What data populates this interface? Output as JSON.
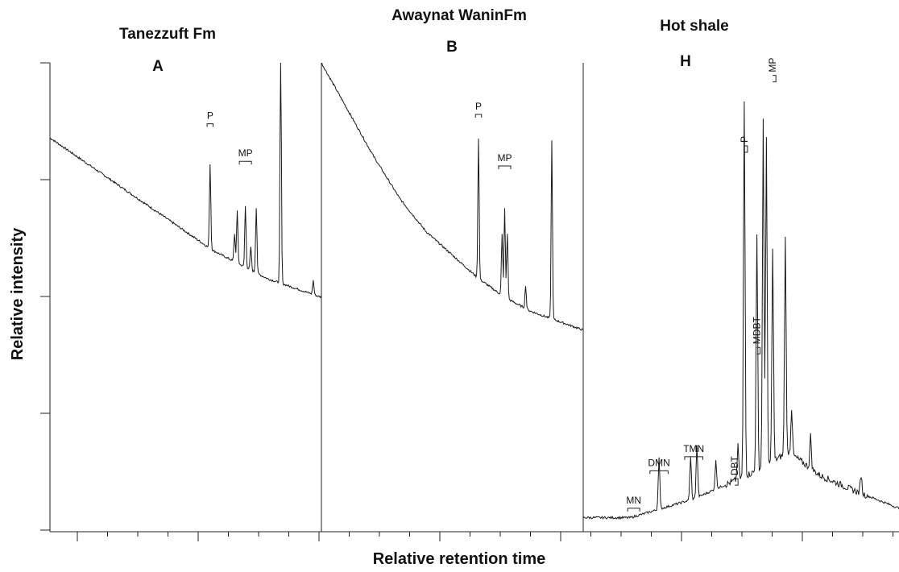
{
  "chart_data": {
    "type": "line",
    "xlabel": "Relative retention time",
    "ylabel": "Relative intensity",
    "grid": false,
    "panels": [
      {
        "title": "Tanezzuft Fm",
        "letter": "A",
        "xlim": [
          0,
          100
        ],
        "ylim": [
          0,
          100
        ],
        "baseline": [
          [
            0,
            84
          ],
          [
            20,
            76
          ],
          [
            40,
            68
          ],
          [
            60,
            60
          ],
          [
            80,
            54
          ],
          [
            100,
            50
          ]
        ],
        "peaks": [
          {
            "x": 59,
            "h": 18
          },
          {
            "x": 68,
            "h": 6
          },
          {
            "x": 69,
            "h": 11
          },
          {
            "x": 72,
            "h": 13
          },
          {
            "x": 74,
            "h": 5
          },
          {
            "x": 76,
            "h": 14
          },
          {
            "x": 85,
            "h": 50
          },
          {
            "x": 97,
            "h": 3
          }
        ],
        "labels": [
          {
            "text": "P",
            "x": 59,
            "y": 87
          },
          {
            "text": "MP",
            "x": 72,
            "y": 79
          }
        ]
      },
      {
        "title": "Awaynat WaninFm",
        "letter": "B",
        "xlim": [
          0,
          100
        ],
        "ylim": [
          0,
          100
        ],
        "baseline": [
          [
            0,
            100
          ],
          [
            10,
            90
          ],
          [
            20,
            80
          ],
          [
            30,
            71
          ],
          [
            40,
            64
          ],
          [
            50,
            59
          ],
          [
            60,
            54
          ],
          [
            70,
            50
          ],
          [
            80,
            47
          ],
          [
            90,
            45
          ],
          [
            100,
            43
          ]
        ],
        "peaks": [
          {
            "x": 60,
            "h": 30
          },
          {
            "x": 69,
            "h": 13
          },
          {
            "x": 70,
            "h": 19
          },
          {
            "x": 71,
            "h": 14
          },
          {
            "x": 78,
            "h": 5
          },
          {
            "x": 88,
            "h": 38
          }
        ],
        "labels": [
          {
            "text": "P",
            "x": 60,
            "y": 89
          },
          {
            "text": "MP",
            "x": 70,
            "y": 78
          }
        ]
      },
      {
        "title": "Hot shale",
        "letter": "H",
        "xlim": [
          0,
          100
        ],
        "ylim": [
          0,
          100
        ],
        "baseline": [
          [
            0,
            3
          ],
          [
            15,
            3
          ],
          [
            25,
            5
          ],
          [
            35,
            7
          ],
          [
            45,
            10
          ],
          [
            55,
            13
          ],
          [
            65,
            17
          ],
          [
            75,
            12
          ],
          [
            85,
            9
          ],
          [
            100,
            5
          ]
        ],
        "peaks": [
          {
            "x": 24,
            "h": 11
          },
          {
            "x": 34,
            "h": 9
          },
          {
            "x": 36,
            "h": 11
          },
          {
            "x": 42,
            "h": 6
          },
          {
            "x": 49,
            "h": 7
          },
          {
            "x": 51,
            "h": 80
          },
          {
            "x": 55,
            "h": 50
          },
          {
            "x": 57,
            "h": 74
          },
          {
            "x": 58,
            "h": 70
          },
          {
            "x": 60,
            "h": 45
          },
          {
            "x": 64,
            "h": 46
          },
          {
            "x": 66,
            "h": 10
          },
          {
            "x": 72,
            "h": 7
          },
          {
            "x": 88,
            "h": 4
          }
        ],
        "labels": [
          {
            "text": "MN",
            "x": 16,
            "y": 5
          },
          {
            "text": "DMN",
            "x": 24,
            "y": 13
          },
          {
            "text": "TMN",
            "x": 35,
            "y": 16
          },
          {
            "text": "DBT",
            "x": 48,
            "y": 12
          },
          {
            "text": "P",
            "x": 51,
            "y": 83
          },
          {
            "text": "MDBT",
            "x": 55,
            "y": 40
          },
          {
            "text": "MP",
            "x": 60,
            "y": 98
          }
        ]
      }
    ]
  }
}
